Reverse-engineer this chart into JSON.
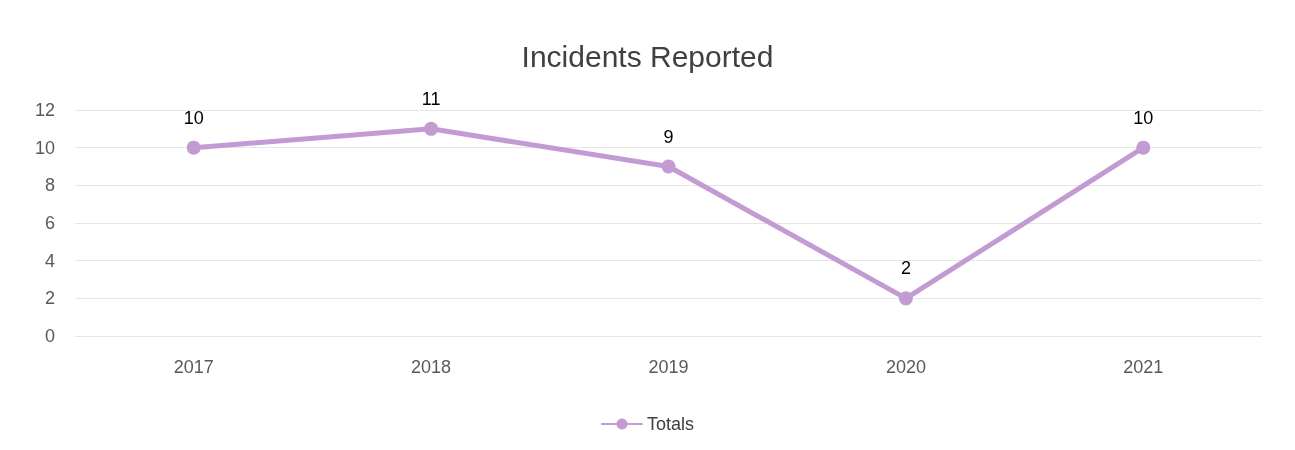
{
  "chart_data": {
    "type": "line",
    "title": "Incidents Reported",
    "categories": [
      "2017",
      "2018",
      "2019",
      "2020",
      "2021"
    ],
    "series": [
      {
        "name": "Totals",
        "color": "#c39bd3",
        "values": [
          10,
          11,
          9,
          2,
          10
        ]
      }
    ],
    "ylim": [
      0,
      12
    ],
    "yticks": [
      0,
      2,
      4,
      6,
      8,
      10,
      12
    ],
    "grid": "y",
    "legend": "bottom",
    "marker": "circle",
    "line_style": "solid",
    "data_labels": true
  }
}
